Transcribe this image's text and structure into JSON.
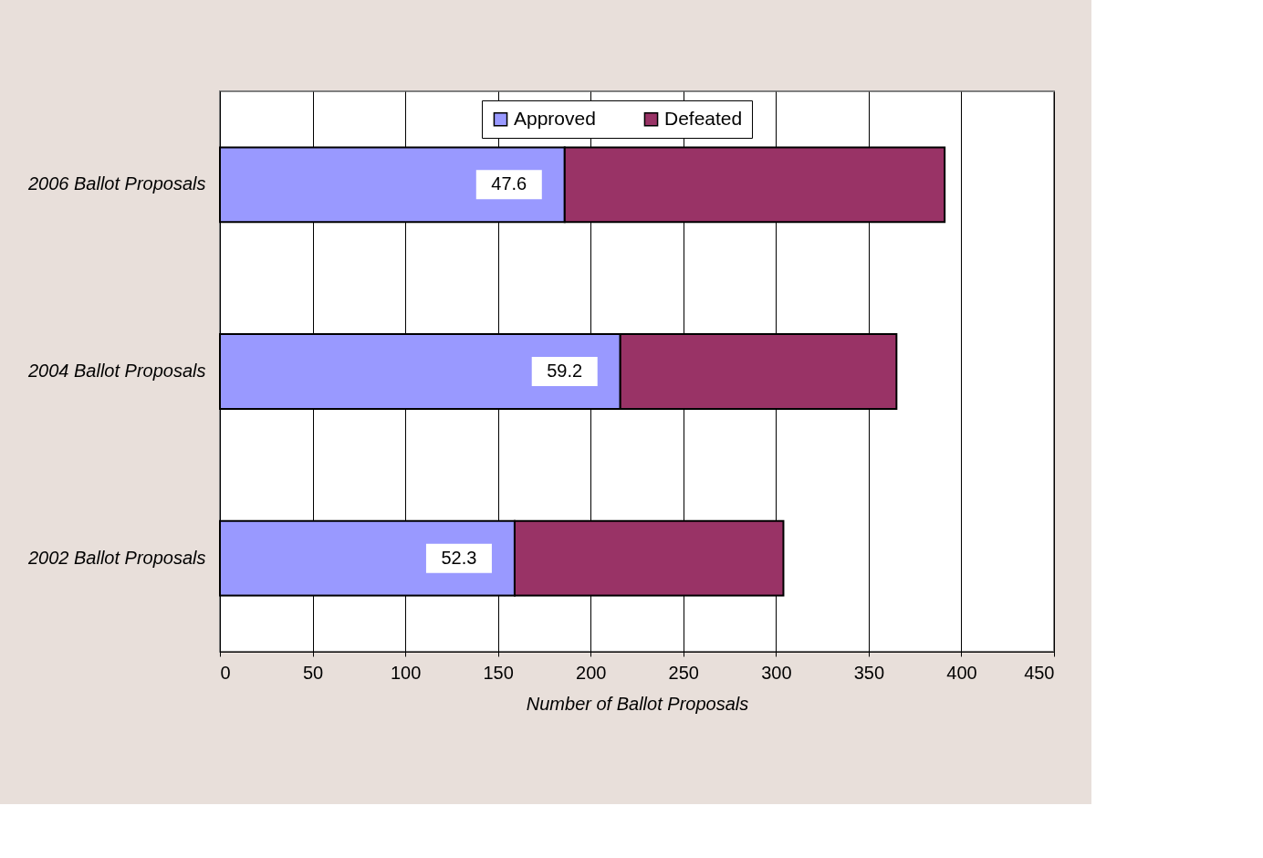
{
  "chart_data": {
    "type": "bar",
    "orientation": "horizontal",
    "stacked": true,
    "categories": [
      "2006 Ballot Proposals",
      "2004 Ballot Proposals",
      "2002 Ballot Proposals"
    ],
    "series": [
      {
        "name": "Approved",
        "color": "#9999ff",
        "values": [
          186,
          216,
          159
        ]
      },
      {
        "name": "Defeated",
        "color": "#993366",
        "values": [
          205,
          149,
          145
        ]
      }
    ],
    "xlabel": "Number of Ballot Proposals",
    "xlim": [
      0,
      450
    ],
    "xticks": [
      0,
      50,
      100,
      150,
      200,
      250,
      300,
      350,
      400,
      450
    ],
    "annotations": [
      "47.6",
      "59.2",
      "52.3"
    ],
    "grid": "x",
    "legend": "top"
  }
}
